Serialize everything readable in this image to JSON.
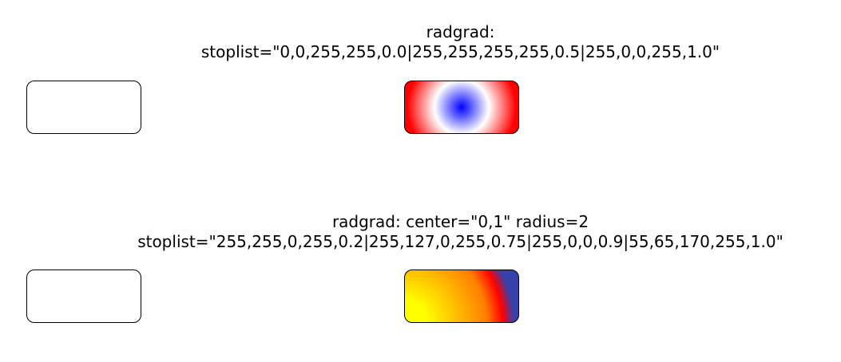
{
  "section1": {
    "label_line1": "radgrad:",
    "label_line2": "stoplist=\"0,0,255,255,0.0|255,255,255,255,0.5|255,0,0,255,1.0\"",
    "gradient": {
      "stops": [
        {
          "color": "#0000ff",
          "offset": 0.0
        },
        {
          "color": "#ffffff",
          "offset": 0.5
        },
        {
          "color": "#ff0000",
          "offset": 1.0
        }
      ]
    }
  },
  "section2": {
    "label_line1": "radgrad: center=\"0,1\" radius=2",
    "label_line2": "stoplist=\"255,255,0,255,0.2|255,127,0,255,0.75|255,0,0,0.9|55,65,170,255,1.0\"",
    "gradient": {
      "stops": [
        {
          "color": "#ffff00",
          "offset": 0.2
        },
        {
          "color": "#ff7f00",
          "offset": 0.75
        },
        {
          "color": "#ff0000",
          "offset": 0.9
        },
        {
          "color": "#3741aa",
          "offset": 1.0
        }
      ]
    }
  },
  "colors": {
    "border": "#000000",
    "background": "#ffffff"
  }
}
